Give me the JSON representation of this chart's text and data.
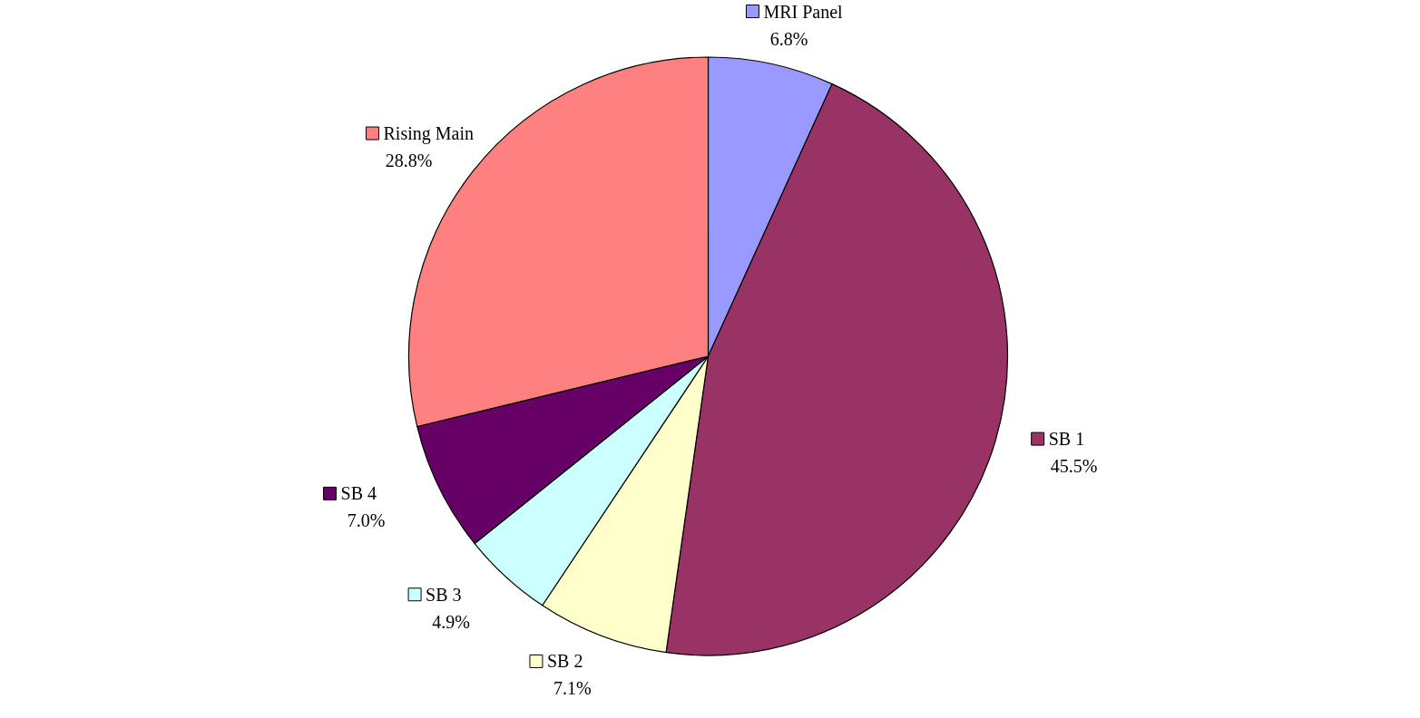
{
  "chart_data": {
    "type": "pie",
    "categories": [
      "MRI Panel",
      "SB 1",
      "SB 2",
      "SB 3",
      "SB 4",
      "Rising Main"
    ],
    "values": [
      6.8,
      45.5,
      7.1,
      4.9,
      7.0,
      28.8
    ],
    "colors": [
      "#9999ff",
      "#993366",
      "#ffffcc",
      "#ccffff",
      "#660066",
      "#ff8080"
    ],
    "value_labels": [
      "6.8%",
      "45.5%",
      "7.1%",
      "4.9%",
      "7.0%",
      "28.8%"
    ],
    "legend": true
  }
}
